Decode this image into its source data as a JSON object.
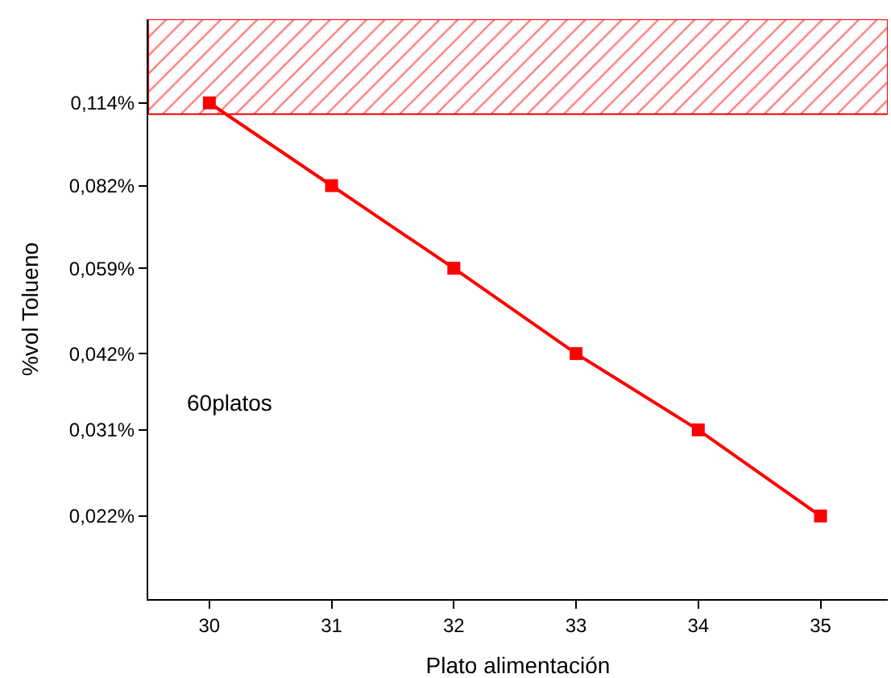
{
  "chart_data": {
    "type": "line",
    "xlabel": "Plato alimentación",
    "ylabel": "%vol Tolueno",
    "x": [
      30,
      31,
      32,
      33,
      34,
      35
    ],
    "series": [
      {
        "color": "#ff0000",
        "values": [
          0.114,
          0.082,
          0.059,
          0.042,
          0.031,
          0.022
        ]
      }
    ],
    "log": "y",
    "xlim": [
      29.5,
      35.55
    ],
    "xticks": [
      30,
      31,
      32,
      33,
      34,
      35
    ],
    "ylim": [
      0.0158,
      0.159
    ],
    "yticks": [
      {
        "value": 0.022,
        "label": "0,022%"
      },
      {
        "value": 0.031,
        "label": "0,031%"
      },
      {
        "value": 0.042,
        "label": "0,042%"
      },
      {
        "value": 0.059,
        "label": "0,059%"
      },
      {
        "value": 0.082,
        "label": "0,082%"
      },
      {
        "value": 0.114,
        "label": "0,114%"
      }
    ],
    "bands": [
      {
        "axis": "y",
        "from": 0.109,
        "to": 0.159,
        "color": "#ff0000"
      }
    ],
    "annotations": [
      "60platos"
    ],
    "marker": "square",
    "line_style": "solid"
  }
}
